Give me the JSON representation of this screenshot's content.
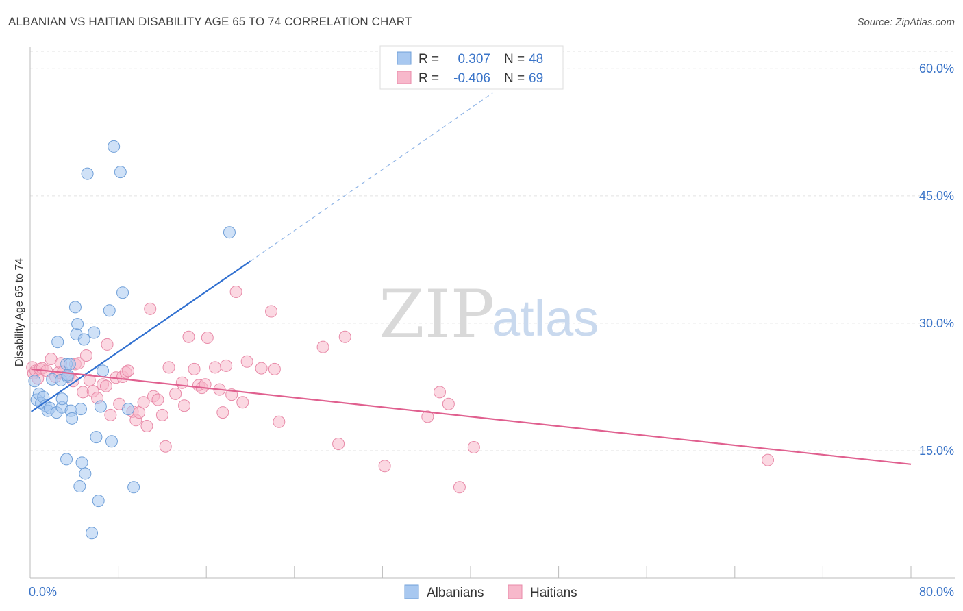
{
  "header": {
    "title": "ALBANIAN VS HAITIAN DISABILITY AGE 65 TO 74 CORRELATION CHART",
    "source": "Source: ZipAtlas.com"
  },
  "watermark": {
    "zip": "ZIP",
    "atlas": "atlas"
  },
  "legend": {
    "rows": [
      {
        "r_label": "R =",
        "r_value": "0.307",
        "n_label": "N =",
        "n_value": "48",
        "color": "#a8c8f0",
        "stroke": "#6f9fd8"
      },
      {
        "r_label": "R =",
        "r_value": "-0.406",
        "n_label": "N =",
        "n_value": "69",
        "color": "#f7b8cb",
        "stroke": "#e88aa8"
      }
    ]
  },
  "chart_data": {
    "type": "scatter",
    "title": "ALBANIAN VS HAITIAN DISABILITY AGE 65 TO 74 CORRELATION CHART",
    "ylabel": "Disability Age 65 to 74",
    "xlabel": "",
    "xlim": [
      0,
      80
    ],
    "ylim": [
      0,
      62
    ],
    "x_tick_labels": [
      "0.0%",
      "80.0%"
    ],
    "y_ticks": [
      15,
      30,
      45,
      60
    ],
    "y_tick_labels": [
      "15.0%",
      "30.0%",
      "45.0%",
      "60.0%"
    ],
    "grid": true,
    "legend_position": "top-center",
    "series": [
      {
        "name": "Albanians",
        "color": "#a8c8f0",
        "stroke": "#6f9fd8",
        "line_color": "#2f6fd0",
        "trend": {
          "x0": 0.1,
          "y0": 19.6,
          "x1": 20.0,
          "y1": 37.3,
          "dash_to_x": 42.0,
          "dash_to_y": 57.1
        },
        "points": [
          [
            0.4,
            23.2
          ],
          [
            0.6,
            21.0
          ],
          [
            0.8,
            21.7
          ],
          [
            1.0,
            20.6
          ],
          [
            1.2,
            21.3
          ],
          [
            1.4,
            20.3
          ],
          [
            1.6,
            19.7
          ],
          [
            1.8,
            20.0
          ],
          [
            2.0,
            23.4
          ],
          [
            2.4,
            19.5
          ],
          [
            2.5,
            27.8
          ],
          [
            2.8,
            23.3
          ],
          [
            2.9,
            20.1
          ],
          [
            2.9,
            21.1
          ],
          [
            3.3,
            25.2
          ],
          [
            3.4,
            23.7
          ],
          [
            3.3,
            14.0
          ],
          [
            3.4,
            23.9
          ],
          [
            3.6,
            25.2
          ],
          [
            3.7,
            19.7
          ],
          [
            3.8,
            18.8
          ],
          [
            4.2,
            28.7
          ],
          [
            4.3,
            29.9
          ],
          [
            4.1,
            31.9
          ],
          [
            4.5,
            10.8
          ],
          [
            4.6,
            19.9
          ],
          [
            4.7,
            13.6
          ],
          [
            4.9,
            28.1
          ],
          [
            5.0,
            12.3
          ],
          [
            5.2,
            47.6
          ],
          [
            5.6,
            5.3
          ],
          [
            5.8,
            28.9
          ],
          [
            6.0,
            16.6
          ],
          [
            6.2,
            9.1
          ],
          [
            6.4,
            20.2
          ],
          [
            6.6,
            24.4
          ],
          [
            7.2,
            31.5
          ],
          [
            7.4,
            16.1
          ],
          [
            7.6,
            50.8
          ],
          [
            8.2,
            47.8
          ],
          [
            8.4,
            33.6
          ],
          [
            8.9,
            19.9
          ],
          [
            9.4,
            10.7
          ],
          [
            18.1,
            40.7
          ]
        ]
      },
      {
        "name": "Haitians",
        "color": "#f7b8cb",
        "stroke": "#e88aa8",
        "line_color": "#e0608f",
        "trend": {
          "x0": 0.1,
          "y0": 24.6,
          "x1": 80.0,
          "y1": 13.4
        },
        "points": [
          [
            0.2,
            24.8
          ],
          [
            0.3,
            24.1
          ],
          [
            0.5,
            24.4
          ],
          [
            0.7,
            23.5
          ],
          [
            0.9,
            24.6
          ],
          [
            1.1,
            24.7
          ],
          [
            1.5,
            24.4
          ],
          [
            1.9,
            25.8
          ],
          [
            2.3,
            23.7
          ],
          [
            2.6,
            24.2
          ],
          [
            2.8,
            25.3
          ],
          [
            3.0,
            24.3
          ],
          [
            3.5,
            23.8
          ],
          [
            3.9,
            23.2
          ],
          [
            4.1,
            25.2
          ],
          [
            4.4,
            25.3
          ],
          [
            4.8,
            21.9
          ],
          [
            5.1,
            26.2
          ],
          [
            5.4,
            23.3
          ],
          [
            5.7,
            22.0
          ],
          [
            6.1,
            21.2
          ],
          [
            6.6,
            22.8
          ],
          [
            6.9,
            22.6
          ],
          [
            7.0,
            27.5
          ],
          [
            7.3,
            19.2
          ],
          [
            7.8,
            23.6
          ],
          [
            8.1,
            20.5
          ],
          [
            8.4,
            23.7
          ],
          [
            8.7,
            24.2
          ],
          [
            8.9,
            24.4
          ],
          [
            9.3,
            19.6
          ],
          [
            9.6,
            18.6
          ],
          [
            9.9,
            19.5
          ],
          [
            10.3,
            20.7
          ],
          [
            10.6,
            17.9
          ],
          [
            10.9,
            31.7
          ],
          [
            11.2,
            21.4
          ],
          [
            11.6,
            21.0
          ],
          [
            12.0,
            19.2
          ],
          [
            12.3,
            15.5
          ],
          [
            12.6,
            24.8
          ],
          [
            13.2,
            21.7
          ],
          [
            13.8,
            23.0
          ],
          [
            14.0,
            20.3
          ],
          [
            14.4,
            28.4
          ],
          [
            14.9,
            24.6
          ],
          [
            15.3,
            22.7
          ],
          [
            15.6,
            22.4
          ],
          [
            15.9,
            22.8
          ],
          [
            16.1,
            28.3
          ],
          [
            16.8,
            24.8
          ],
          [
            17.2,
            22.2
          ],
          [
            17.5,
            19.5
          ],
          [
            17.8,
            25.0
          ],
          [
            18.3,
            21.6
          ],
          [
            18.7,
            33.7
          ],
          [
            19.3,
            20.7
          ],
          [
            19.7,
            25.5
          ],
          [
            21.0,
            24.7
          ],
          [
            21.9,
            31.4
          ],
          [
            22.2,
            24.6
          ],
          [
            22.6,
            18.4
          ],
          [
            26.6,
            27.2
          ],
          [
            28.0,
            15.8
          ],
          [
            28.6,
            28.4
          ],
          [
            32.2,
            13.2
          ],
          [
            36.1,
            19.0
          ],
          [
            37.2,
            21.9
          ],
          [
            38.0,
            20.5
          ],
          [
            39.0,
            10.7
          ],
          [
            40.3,
            15.4
          ],
          [
            67.0,
            13.9
          ]
        ]
      }
    ]
  }
}
